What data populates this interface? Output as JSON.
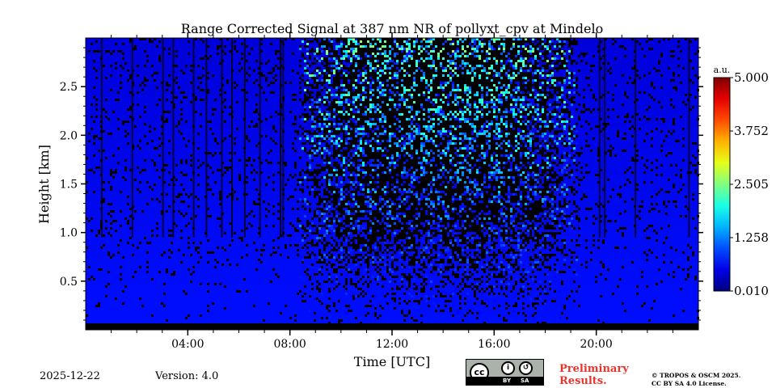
{
  "chart_data": {
    "type": "heatmap",
    "title": "Range Corrected Signal at 387 nm NR of pollyxt_cpv at Mindelo",
    "xlabel": "Time [UTC]",
    "ylabel": "Height [km]",
    "x_range_hours": [
      0,
      24
    ],
    "y_range_km": [
      0,
      3.0
    ],
    "x_ticks": [
      {
        "hour": 4,
        "label": "04:00"
      },
      {
        "hour": 8,
        "label": "08:00"
      },
      {
        "hour": 12,
        "label": "12:00"
      },
      {
        "hour": 16,
        "label": "16:00"
      },
      {
        "hour": 20,
        "label": "20:00"
      }
    ],
    "y_ticks": [
      {
        "value": 0.5,
        "label": "0.5"
      },
      {
        "value": 1.0,
        "label": "1.0"
      },
      {
        "value": 1.5,
        "label": "1.5"
      },
      {
        "value": 2.0,
        "label": "2.0"
      },
      {
        "value": 2.5,
        "label": "2.5"
      }
    ],
    "colorbar": {
      "unit_label": "a.u.",
      "min": 0.01,
      "max": 5.0,
      "ticks": [
        {
          "value": 0.01,
          "label": "0.010"
        },
        {
          "value": 1.258,
          "label": "1.258"
        },
        {
          "value": 2.505,
          "label": "2.505"
        },
        {
          "value": 3.752,
          "label": "3.752"
        },
        {
          "value": 5.0,
          "label": "5.000"
        }
      ],
      "colormap": "jet"
    },
    "features": {
      "boundary_layer_top_km": 1.0,
      "daylight_noise_start_hour": 8.0,
      "daylight_noise_end_hour": 19.5,
      "signal_base_value": 0.6,
      "noise_peak_value": 2.8
    }
  },
  "footer": {
    "date": "2025-12-22",
    "version": "Version: 4.0",
    "preliminary_line1": "Preliminary",
    "preliminary_line2": "Results.",
    "copyright_line1": "© TROPOS & OSCM 2025.",
    "copyright_line2": "CC BY SA 4.0 License.",
    "license_badge": {
      "cc": "cc",
      "by": "BY",
      "sa": "SA"
    }
  },
  "colors": {
    "prelim_text": "#e8352e",
    "background": "#ffffff"
  }
}
